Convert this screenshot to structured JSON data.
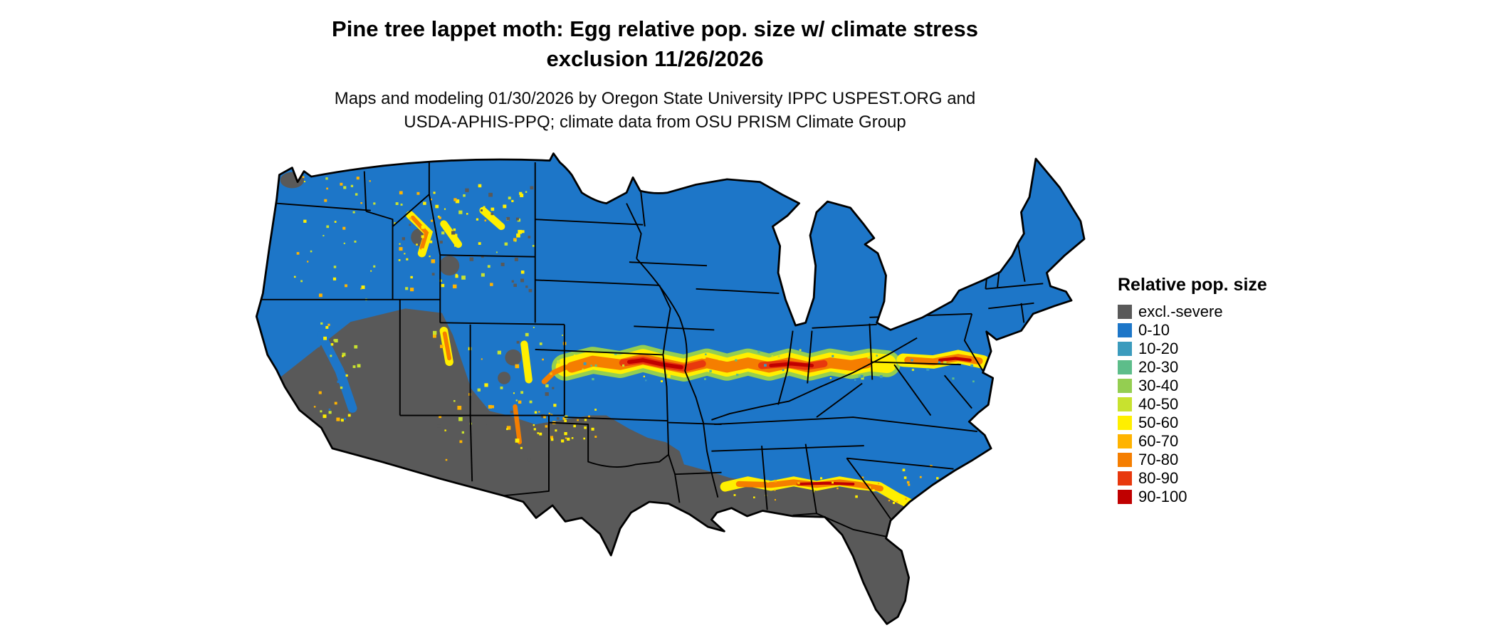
{
  "header": {
    "title_line1": "Pine tree lappet moth: Egg relative pop. size w/ climate stress",
    "title_line2": "exclusion 11/26/2026",
    "subtitle_line1": "Maps and modeling 01/30/2026 by Oregon State University IPPC USPEST.ORG and",
    "subtitle_line2": "USDA-APHIS-PPQ; climate data from OSU PRISM Climate Group"
  },
  "legend": {
    "title": "Relative pop. size",
    "items": [
      {
        "label": "excl.-severe",
        "color": "#595959"
      },
      {
        "label": "0-10",
        "color": "#1d76c8"
      },
      {
        "label": "10-20",
        "color": "#3b9bbd"
      },
      {
        "label": "20-30",
        "color": "#5dbd8a"
      },
      {
        "label": "30-40",
        "color": "#94ce51"
      },
      {
        "label": "40-50",
        "color": "#c8e22f"
      },
      {
        "label": "50-60",
        "color": "#ffef00"
      },
      {
        "label": "60-70",
        "color": "#ffb300"
      },
      {
        "label": "70-80",
        "color": "#f57e00"
      },
      {
        "label": "80-90",
        "color": "#e8380d"
      },
      {
        "label": "90-100",
        "color": "#c00000"
      }
    ]
  },
  "map": {
    "region": "Continental United States",
    "background": "#ffffff",
    "state_border_color": "#000000"
  }
}
